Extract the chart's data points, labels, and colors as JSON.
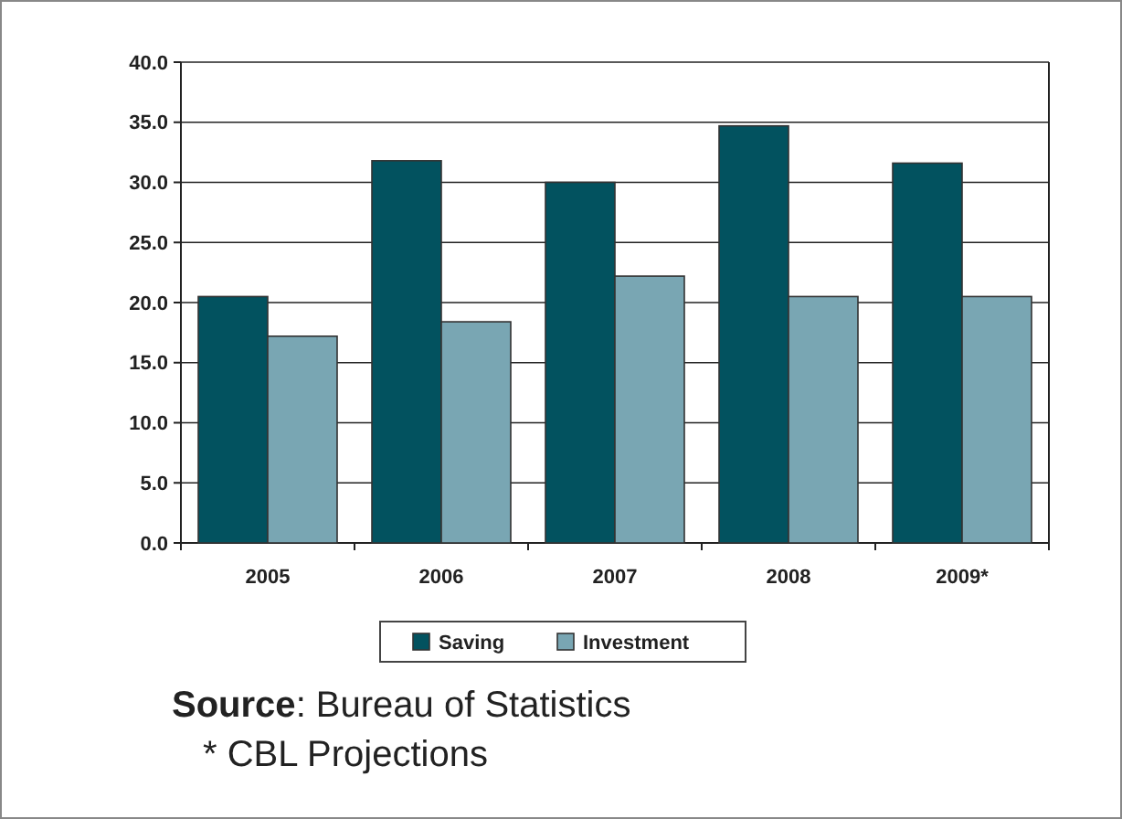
{
  "chart_data": {
    "type": "bar",
    "categories": [
      "2005",
      "2006",
      "2007",
      "2008",
      "2009*"
    ],
    "series": [
      {
        "name": "Saving",
        "color": "#02525f",
        "values": [
          20.5,
          31.8,
          30.0,
          34.7,
          31.6
        ]
      },
      {
        "name": "Investment",
        "color": "#79a6b3",
        "values": [
          17.2,
          18.4,
          22.2,
          20.5,
          20.5
        ]
      }
    ],
    "ylim": [
      0,
      40
    ],
    "yticks": [
      {
        "value": 0,
        "label": "0.0"
      },
      {
        "value": 5,
        "label": "5.0"
      },
      {
        "value": 10,
        "label": "10.0"
      },
      {
        "value": 15,
        "label": "15.0"
      },
      {
        "value": 20,
        "label": "20.0"
      },
      {
        "value": 25,
        "label": "25.0"
      },
      {
        "value": 30,
        "label": "30.0"
      },
      {
        "value": 35,
        "label": "35.0"
      },
      {
        "value": 40,
        "label": "40.0"
      }
    ],
    "grid": "y",
    "legend": "bottom",
    "annotations": [
      "Source: Bureau of Statistics",
      "* CBL Projections"
    ]
  }
}
